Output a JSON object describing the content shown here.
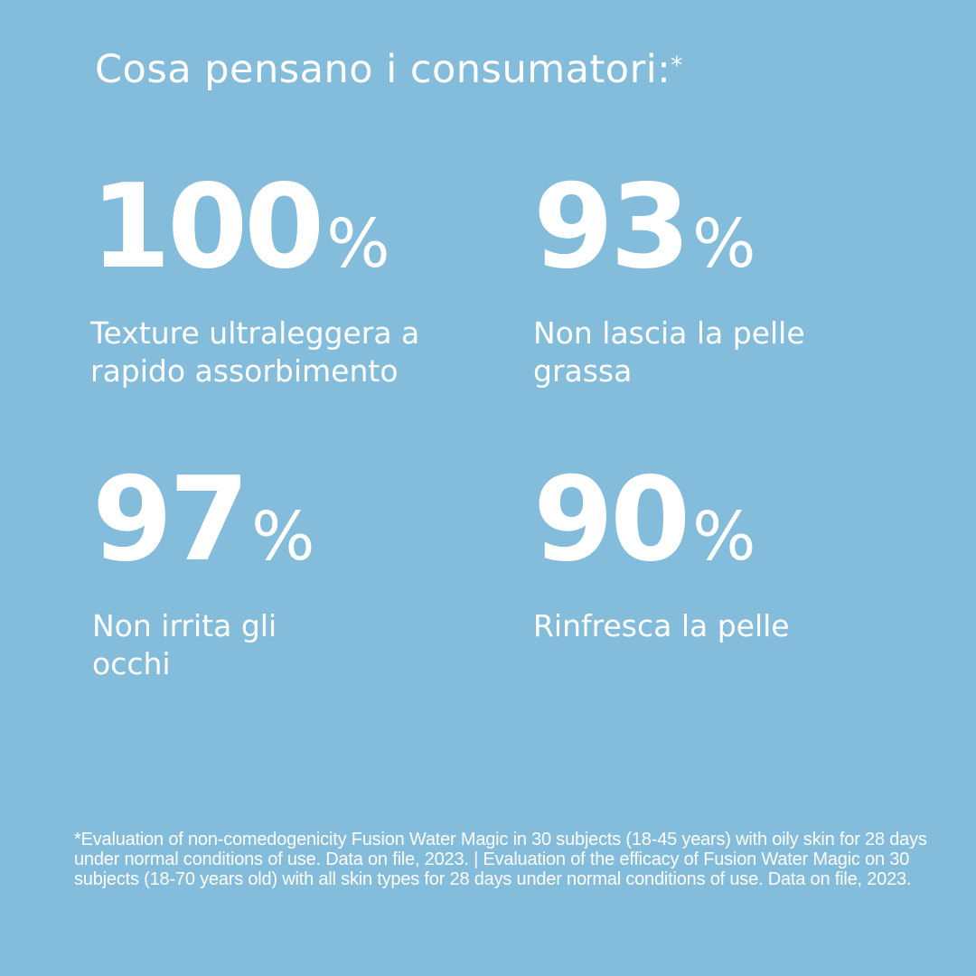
{
  "title": "Cosa pensano i consumatori:",
  "title_mark": "*",
  "background_color": "#84bddb",
  "stats": [
    {
      "value": "100",
      "unit": "%",
      "label": "Texture ultraleggera a rapido assorbimento"
    },
    {
      "value": "93",
      "unit": "%",
      "label": "Non lascia la pelle grassa"
    },
    {
      "value": "97",
      "unit": "%",
      "label": "Non irrita gli occhi"
    },
    {
      "value": "90",
      "unit": "%",
      "label": "Rinfresca la pelle"
    }
  ],
  "footnote": "*Evaluation of non-comedogenicity Fusion Water Magic in 30 subjects (18-45 years) with oily skin for 28 days under normal conditions of use. Data on file, 2023. | Evaluation of the efficacy of Fusion Water Magic on 30 subjects (18-70 years old) with all skin types for 28 days under normal conditions of use. Data on file, 2023."
}
